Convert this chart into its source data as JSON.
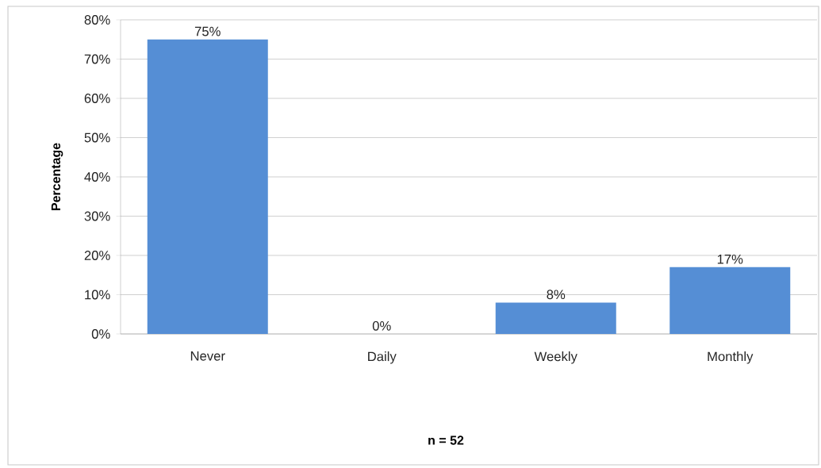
{
  "chart_data": {
    "type": "bar",
    "ylabel": "Percentage",
    "categories": [
      "Never",
      "Daily",
      "Weekly",
      "Monthly"
    ],
    "values": [
      75,
      0,
      8,
      17
    ],
    "color": "#558ed5",
    "value_labels": [
      "75%",
      "0%",
      "8%",
      "17%"
    ],
    "ylim": [
      0,
      80
    ],
    "yticks": [
      {
        "value": 0,
        "label": "0%"
      },
      {
        "value": 10,
        "label": "10%"
      },
      {
        "value": 20,
        "label": "20%"
      },
      {
        "value": 30,
        "label": "30%"
      },
      {
        "value": 40,
        "label": "40%"
      },
      {
        "value": 50,
        "label": "50%"
      },
      {
        "value": 60,
        "label": "60%"
      },
      {
        "value": 70,
        "label": "70%"
      },
      {
        "value": 80,
        "label": "80%"
      }
    ],
    "grid": "y",
    "annotations": [
      "n = 52"
    ]
  }
}
